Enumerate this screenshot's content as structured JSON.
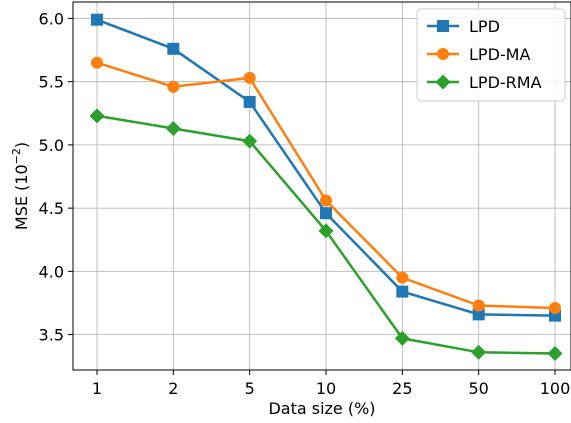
{
  "chart_data": {
    "type": "line",
    "title": "",
    "xlabel": "Data size (%)",
    "ylabel_base": "MSE (10",
    "ylabel_exp": "−2",
    "ylabel_close": ")",
    "categories": [
      "1",
      "2",
      "5",
      "10",
      "25",
      "50",
      "100"
    ],
    "yticks": [
      "3.5",
      "4.0",
      "4.5",
      "5.0",
      "5.5",
      "6.0"
    ],
    "ylim": [
      3.22,
      6.13
    ],
    "grid": true,
    "legend_position": "top-right",
    "series": [
      {
        "name": "LPD",
        "color": "#1f77b4",
        "marker": "square",
        "values": [
          5.99,
          5.76,
          5.34,
          4.46,
          3.84,
          3.66,
          3.65
        ]
      },
      {
        "name": "LPD-MA",
        "color": "#ff7f0e",
        "marker": "circle",
        "values": [
          5.65,
          5.46,
          5.53,
          4.56,
          3.95,
          3.73,
          3.71
        ]
      },
      {
        "name": "LPD-RMA",
        "color": "#2ca02c",
        "marker": "diamond",
        "values": [
          5.23,
          5.13,
          5.03,
          4.32,
          3.47,
          3.36,
          3.35
        ]
      }
    ]
  }
}
